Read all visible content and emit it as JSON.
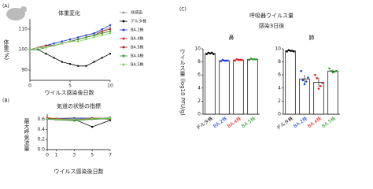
{
  "figure": {
    "labels": [
      "(A)",
      "(B)",
      "(C)"
    ],
    "c_title": "呼吸器ウイルス量",
    "c_subtitle": "感染3日後"
  },
  "chart_data": [
    {
      "type": "line",
      "title": "体重変化",
      "ylabel": "体重(%)",
      "xlabel": "ウイルス感染後日数",
      "legend": "right",
      "x": [
        0,
        1,
        2,
        3,
        4,
        5,
        6,
        7,
        8,
        9,
        10
      ],
      "xlim": [
        0,
        10
      ],
      "xticks": [
        0,
        5,
        10
      ],
      "ylim": [
        85,
        115
      ],
      "yticks": [
        90,
        100,
        110
      ],
      "series": [
        {
          "name": "非感染",
          "color": "#999999",
          "values": [
            100,
            101,
            102,
            103,
            104,
            105,
            106,
            107,
            108,
            109,
            111
          ]
        },
        {
          "name": "デルタ株",
          "color": "#000000",
          "values": [
            100,
            100,
            98,
            96,
            94,
            93,
            92,
            92,
            94,
            96,
            98
          ]
        },
        {
          "name": "BA.2株",
          "color": "#1f3fd6",
          "values": [
            100,
            101,
            102,
            103,
            104,
            105,
            106,
            107,
            108,
            110,
            112
          ]
        },
        {
          "name": "BA.4株",
          "color": "#e02020",
          "values": [
            100,
            101,
            101,
            102,
            103,
            104,
            105,
            106,
            107,
            108,
            109
          ]
        },
        {
          "name": "BA.5株",
          "color": "#a01818",
          "values": [
            100,
            101,
            102,
            102,
            103,
            104,
            105,
            106,
            107,
            109,
            110
          ]
        },
        {
          "name": "BA.4株",
          "color": "#2a9a2a",
          "values": [
            100,
            100,
            101,
            102,
            103,
            104,
            105,
            106,
            107,
            108,
            109
          ]
        },
        {
          "name": "BA.5株",
          "color": "#7ccf5a",
          "values": [
            100,
            101,
            101,
            102,
            103,
            104,
            104,
            105,
            106,
            107,
            108
          ]
        }
      ]
    },
    {
      "type": "line",
      "title": "気道の状態の指標",
      "ylabel": "最大呼気流量",
      "xlabel": "ウイルス感染後日数",
      "x": [
        0,
        1,
        3,
        5,
        7
      ],
      "xlim": [
        0,
        7
      ],
      "xticks": [
        0,
        1,
        3,
        5,
        7
      ],
      "ylim": [
        0,
        0.7
      ],
      "yticks": [
        {
          "value": 0,
          "label": "0.0"
        },
        0.2,
        0.4,
        0.6
      ],
      "series": [
        {
          "color": "#999999",
          "values": [
            0.62,
            0.62,
            0.63,
            0.63,
            0.64
          ]
        },
        {
          "color": "#000000",
          "values": [
            0.62,
            0.6,
            0.6,
            0.45,
            0.58
          ]
        },
        {
          "color": "#1f3fd6",
          "values": [
            0.6,
            0.61,
            0.62,
            0.61,
            0.62
          ]
        },
        {
          "color": "#e02020",
          "values": [
            0.63,
            0.61,
            0.6,
            0.6,
            0.61
          ]
        },
        {
          "color": "#a01818",
          "values": [
            0.61,
            0.6,
            0.59,
            0.62,
            0.6
          ]
        },
        {
          "color": "#2a9a2a",
          "values": [
            0.6,
            0.59,
            0.57,
            0.6,
            0.61
          ]
        },
        {
          "color": "#7ccf5a",
          "values": [
            0.61,
            0.6,
            0.6,
            0.61,
            0.62
          ]
        }
      ]
    },
    {
      "type": "bar",
      "title": "鼻",
      "ylabel": "ウイルス量 (log10 PFU/g)",
      "categories": [
        "デルタ株",
        "BA.2株",
        "BA.4株",
        "BA.5株"
      ],
      "colors": [
        "#000000",
        "#1f3fd6",
        "#e02020",
        "#2a9a2a"
      ],
      "values": [
        9.3,
        8.2,
        8.3,
        8.4
      ],
      "errors": [
        0.1,
        0.1,
        0.1,
        0.1
      ],
      "points": [
        [
          9.2,
          9.4,
          9.3,
          9.4,
          9.2
        ],
        [
          8.1,
          8.3,
          8.2,
          8.2,
          8.2
        ],
        [
          8.2,
          8.4,
          8.3,
          8.3,
          8.3
        ],
        [
          8.3,
          8.5,
          8.4,
          8.4,
          8.4
        ]
      ],
      "ylim": [
        0,
        10
      ],
      "yticks": [
        0,
        2,
        4,
        6,
        8,
        10
      ]
    },
    {
      "type": "bar",
      "title": "肺",
      "categories": [
        "デルタ株",
        "BA.2株",
        "BA.4株",
        "BA.5株"
      ],
      "colors": [
        "#000000",
        "#1f3fd6",
        "#e02020",
        "#2a9a2a"
      ],
      "values": [
        9.7,
        5.4,
        4.9,
        6.6
      ],
      "errors": [
        0.1,
        0.6,
        0.7,
        0.2
      ],
      "points": [
        [
          9.6,
          9.8,
          9.7,
          9.7,
          9.6
        ],
        [
          6.6,
          5.2,
          4.6,
          5.0,
          5.6
        ],
        [
          6.0,
          5.5,
          3.9,
          4.3,
          4.8
        ],
        [
          7.0,
          6.6,
          6.4,
          6.5,
          6.6
        ]
      ],
      "ylim": [
        0,
        10
      ],
      "yticks": [
        0,
        2,
        4,
        6,
        8,
        10
      ]
    }
  ]
}
